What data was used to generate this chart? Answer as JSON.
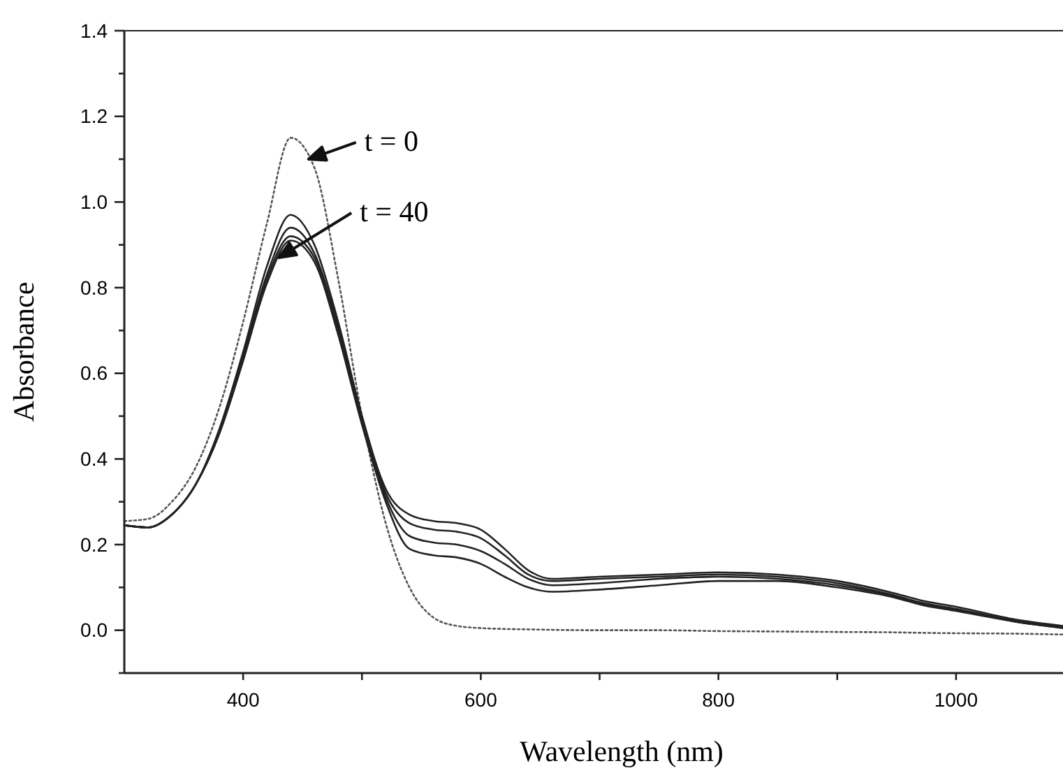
{
  "chart_data": {
    "type": "line",
    "xlabel": "Wavelength (nm)",
    "ylabel": "Absorbance",
    "x": [
      300,
      320,
      340,
      360,
      380,
      400,
      420,
      440,
      460,
      480,
      500,
      520,
      540,
      560,
      580,
      600,
      620,
      640,
      660,
      700,
      750,
      800,
      850,
      900,
      950,
      970,
      1000,
      1050,
      1090
    ],
    "series": [
      {
        "color": "#555555",
        "line_style": "dotted",
        "values": [
          0.255,
          0.26,
          0.3,
          0.38,
          0.52,
          0.72,
          0.95,
          1.15,
          1.08,
          0.82,
          0.5,
          0.25,
          0.1,
          0.03,
          0.01,
          0.005,
          0.003,
          0.002,
          0.001,
          0.0,
          0.0,
          -0.002,
          -0.003,
          -0.004,
          -0.005,
          -0.006,
          -0.007,
          -0.008,
          -0.01
        ]
      },
      {
        "color": "#222222",
        "line_style": "solid",
        "values": [
          0.245,
          0.24,
          0.27,
          0.34,
          0.47,
          0.65,
          0.85,
          0.97,
          0.9,
          0.72,
          0.5,
          0.33,
          0.27,
          0.255,
          0.25,
          0.235,
          0.19,
          0.14,
          0.12,
          0.125,
          0.13,
          0.135,
          0.13,
          0.115,
          0.085,
          0.07,
          0.055,
          0.025,
          0.01
        ]
      },
      {
        "color": "#222222",
        "line_style": "solid",
        "values": [
          0.245,
          0.24,
          0.27,
          0.34,
          0.46,
          0.64,
          0.83,
          0.94,
          0.88,
          0.71,
          0.5,
          0.32,
          0.25,
          0.235,
          0.23,
          0.215,
          0.175,
          0.13,
          0.115,
          0.12,
          0.125,
          0.13,
          0.125,
          0.11,
          0.08,
          0.065,
          0.05,
          0.022,
          0.008
        ]
      },
      {
        "color": "#222222",
        "line_style": "solid",
        "values": [
          0.245,
          0.24,
          0.27,
          0.34,
          0.46,
          0.63,
          0.82,
          0.92,
          0.87,
          0.7,
          0.49,
          0.31,
          0.22,
          0.205,
          0.2,
          0.185,
          0.155,
          0.12,
          0.105,
          0.11,
          0.12,
          0.125,
          0.12,
          0.105,
          0.078,
          0.063,
          0.048,
          0.02,
          0.006
        ]
      },
      {
        "color": "#222222",
        "line_style": "solid",
        "values": [
          0.245,
          0.24,
          0.27,
          0.34,
          0.46,
          0.63,
          0.81,
          0.91,
          0.86,
          0.69,
          0.48,
          0.3,
          0.19,
          0.175,
          0.17,
          0.155,
          0.125,
          0.1,
          0.09,
          0.095,
          0.105,
          0.115,
          0.115,
          0.1,
          0.075,
          0.06,
          0.045,
          0.02,
          0.005
        ]
      }
    ],
    "xlim": [
      300,
      1090
    ],
    "xticks": [
      400,
      {
        "value": 500,
        "label": null
      },
      600,
      {
        "value": 700,
        "label": null
      },
      800,
      {
        "value": 900,
        "label": null
      },
      1000
    ],
    "ylim": [
      -0.1,
      1.4
    ],
    "yticks": [
      {
        "value": -0.1,
        "label": null
      },
      "0.0",
      {
        "value": 0.1,
        "label": null
      },
      0.2,
      {
        "value": 0.3,
        "label": null
      },
      0.4,
      {
        "value": 0.5,
        "label": null
      },
      0.6,
      {
        "value": 0.7,
        "label": null
      },
      0.8,
      {
        "value": 0.9,
        "label": null
      },
      "1.0",
      {
        "value": 1.1,
        "label": null
      },
      1.2,
      {
        "value": 1.3,
        "label": null
      },
      1.4
    ],
    "annotations": [
      {
        "text": "t = 0",
        "x": 455,
        "y": 1.1
      },
      {
        "text": "t = 40",
        "x": 430,
        "y": 0.87
      }
    ],
    "grid": false,
    "marker": "none"
  }
}
